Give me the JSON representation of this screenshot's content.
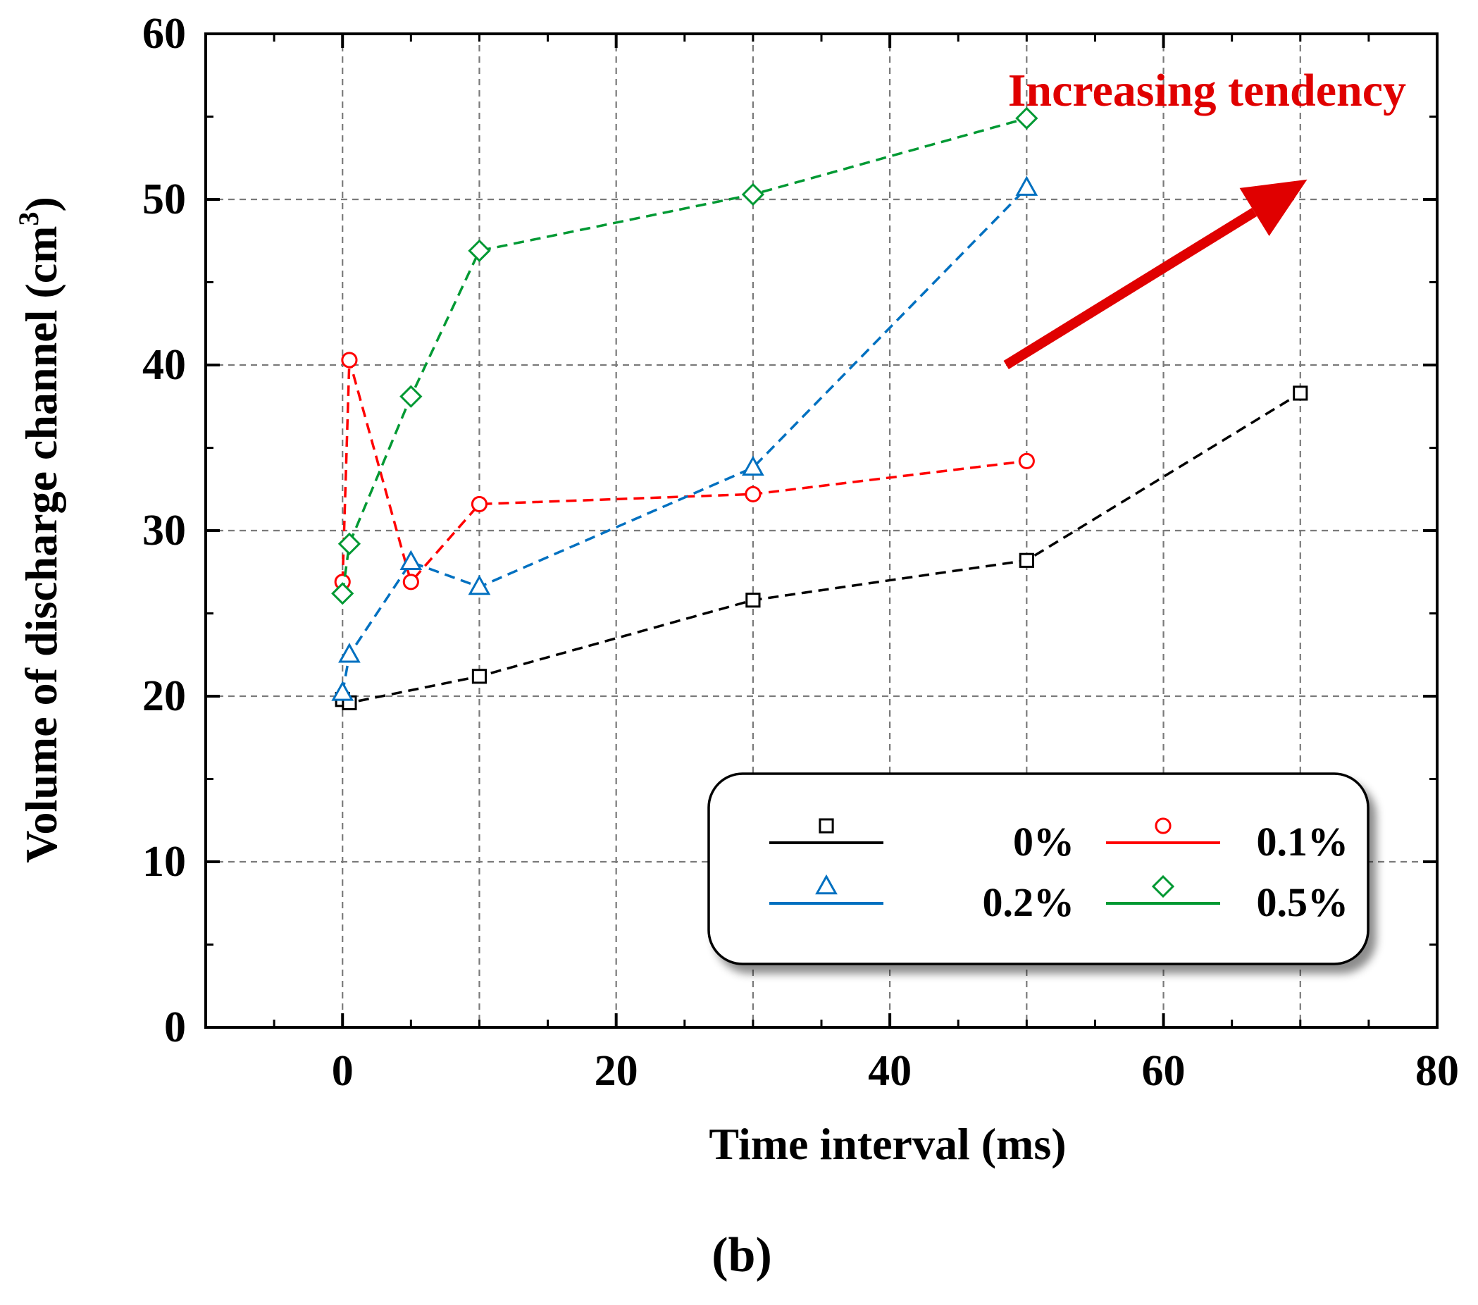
{
  "chart_data": {
    "type": "line",
    "title": "",
    "xlabel": "Time interval  (ms)",
    "ylabel_main": "Volume of discharge channel (cm",
    "ylabel_sup": "3",
    "ylabel_end": ")",
    "xlim": [
      -10,
      80
    ],
    "ylim": [
      0,
      60
    ],
    "xticks": [
      0,
      20,
      40,
      60,
      80
    ],
    "yticks": [
      0,
      10,
      20,
      30,
      40,
      50,
      60
    ],
    "xticks_minor": [
      -5,
      5,
      10,
      15,
      25,
      30,
      35,
      45,
      50,
      55,
      65,
      70,
      75
    ],
    "yticks_minor": [
      5,
      15,
      25,
      35,
      45,
      55
    ],
    "xgrid": [
      0,
      10,
      20,
      30,
      40,
      50,
      60,
      70
    ],
    "ygrid": [
      10,
      20,
      30,
      40,
      50
    ],
    "grid": true,
    "legend_position": "lower-right",
    "series": [
      {
        "name": "0%",
        "color": "#000000",
        "marker": "square",
        "x": [
          0,
          0.5,
          10,
          30,
          50,
          70
        ],
        "y": [
          19.8,
          19.6,
          21.2,
          25.8,
          28.2,
          38.3
        ]
      },
      {
        "name": "0.1%",
        "color": "#ff0000",
        "marker": "circle",
        "x": [
          0,
          0.5,
          5,
          10,
          30,
          50
        ],
        "y": [
          26.9,
          40.3,
          26.9,
          31.6,
          32.2,
          34.2
        ]
      },
      {
        "name": "0.2%",
        "color": "#0070c0",
        "marker": "triangle",
        "x": [
          0,
          0.5,
          5,
          10,
          30,
          50
        ],
        "y": [
          20.2,
          22.5,
          28.1,
          26.6,
          33.8,
          50.7
        ]
      },
      {
        "name": "0.5%",
        "color": "#009933",
        "marker": "diamond",
        "x": [
          0,
          0.5,
          5,
          10,
          30,
          50
        ],
        "y": [
          26.2,
          29.2,
          38.1,
          46.9,
          50.3,
          54.9
        ]
      }
    ],
    "annotation": {
      "text": "Increasing tendency",
      "color": "#e00000",
      "arrow_from": [
        48.5,
        40
      ],
      "arrow_to": [
        70.5,
        51.2
      ]
    },
    "panel_label": "(b)"
  }
}
